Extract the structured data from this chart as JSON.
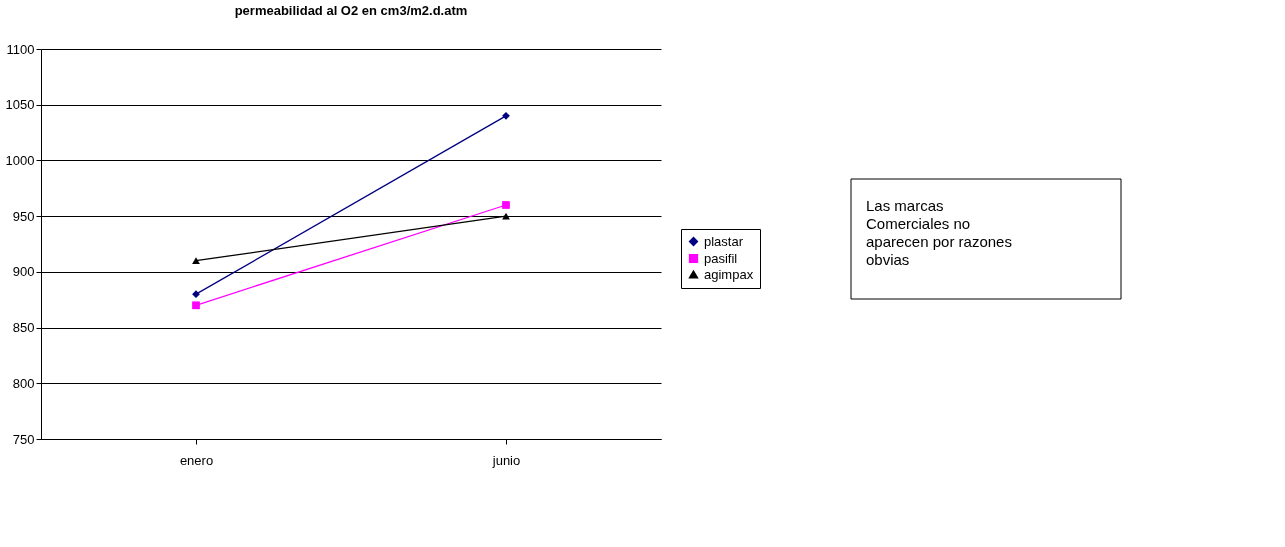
{
  "chart_data": {
    "type": "line",
    "title": "permeabilidad al O2 en cm3/m2.d.atm",
    "categories": [
      "enero",
      "junio"
    ],
    "series": [
      {
        "name": "plastar",
        "color": "#000080",
        "marker": "diamond",
        "values": [
          880,
          1040
        ]
      },
      {
        "name": "pasifil",
        "color": "#ff00ff",
        "marker": "square",
        "values": [
          870,
          960
        ]
      },
      {
        "name": "agimpax",
        "color": "#000000",
        "marker": "triangle",
        "values": [
          910,
          950
        ]
      }
    ],
    "ylim": [
      750,
      1100
    ],
    "yticks": [
      750,
      800,
      850,
      900,
      950,
      1000,
      1050,
      1100
    ],
    "grid": "y",
    "legend": "right",
    "annotations": [
      "Las marcas Comerciales no aparecen por razones obvias"
    ]
  }
}
